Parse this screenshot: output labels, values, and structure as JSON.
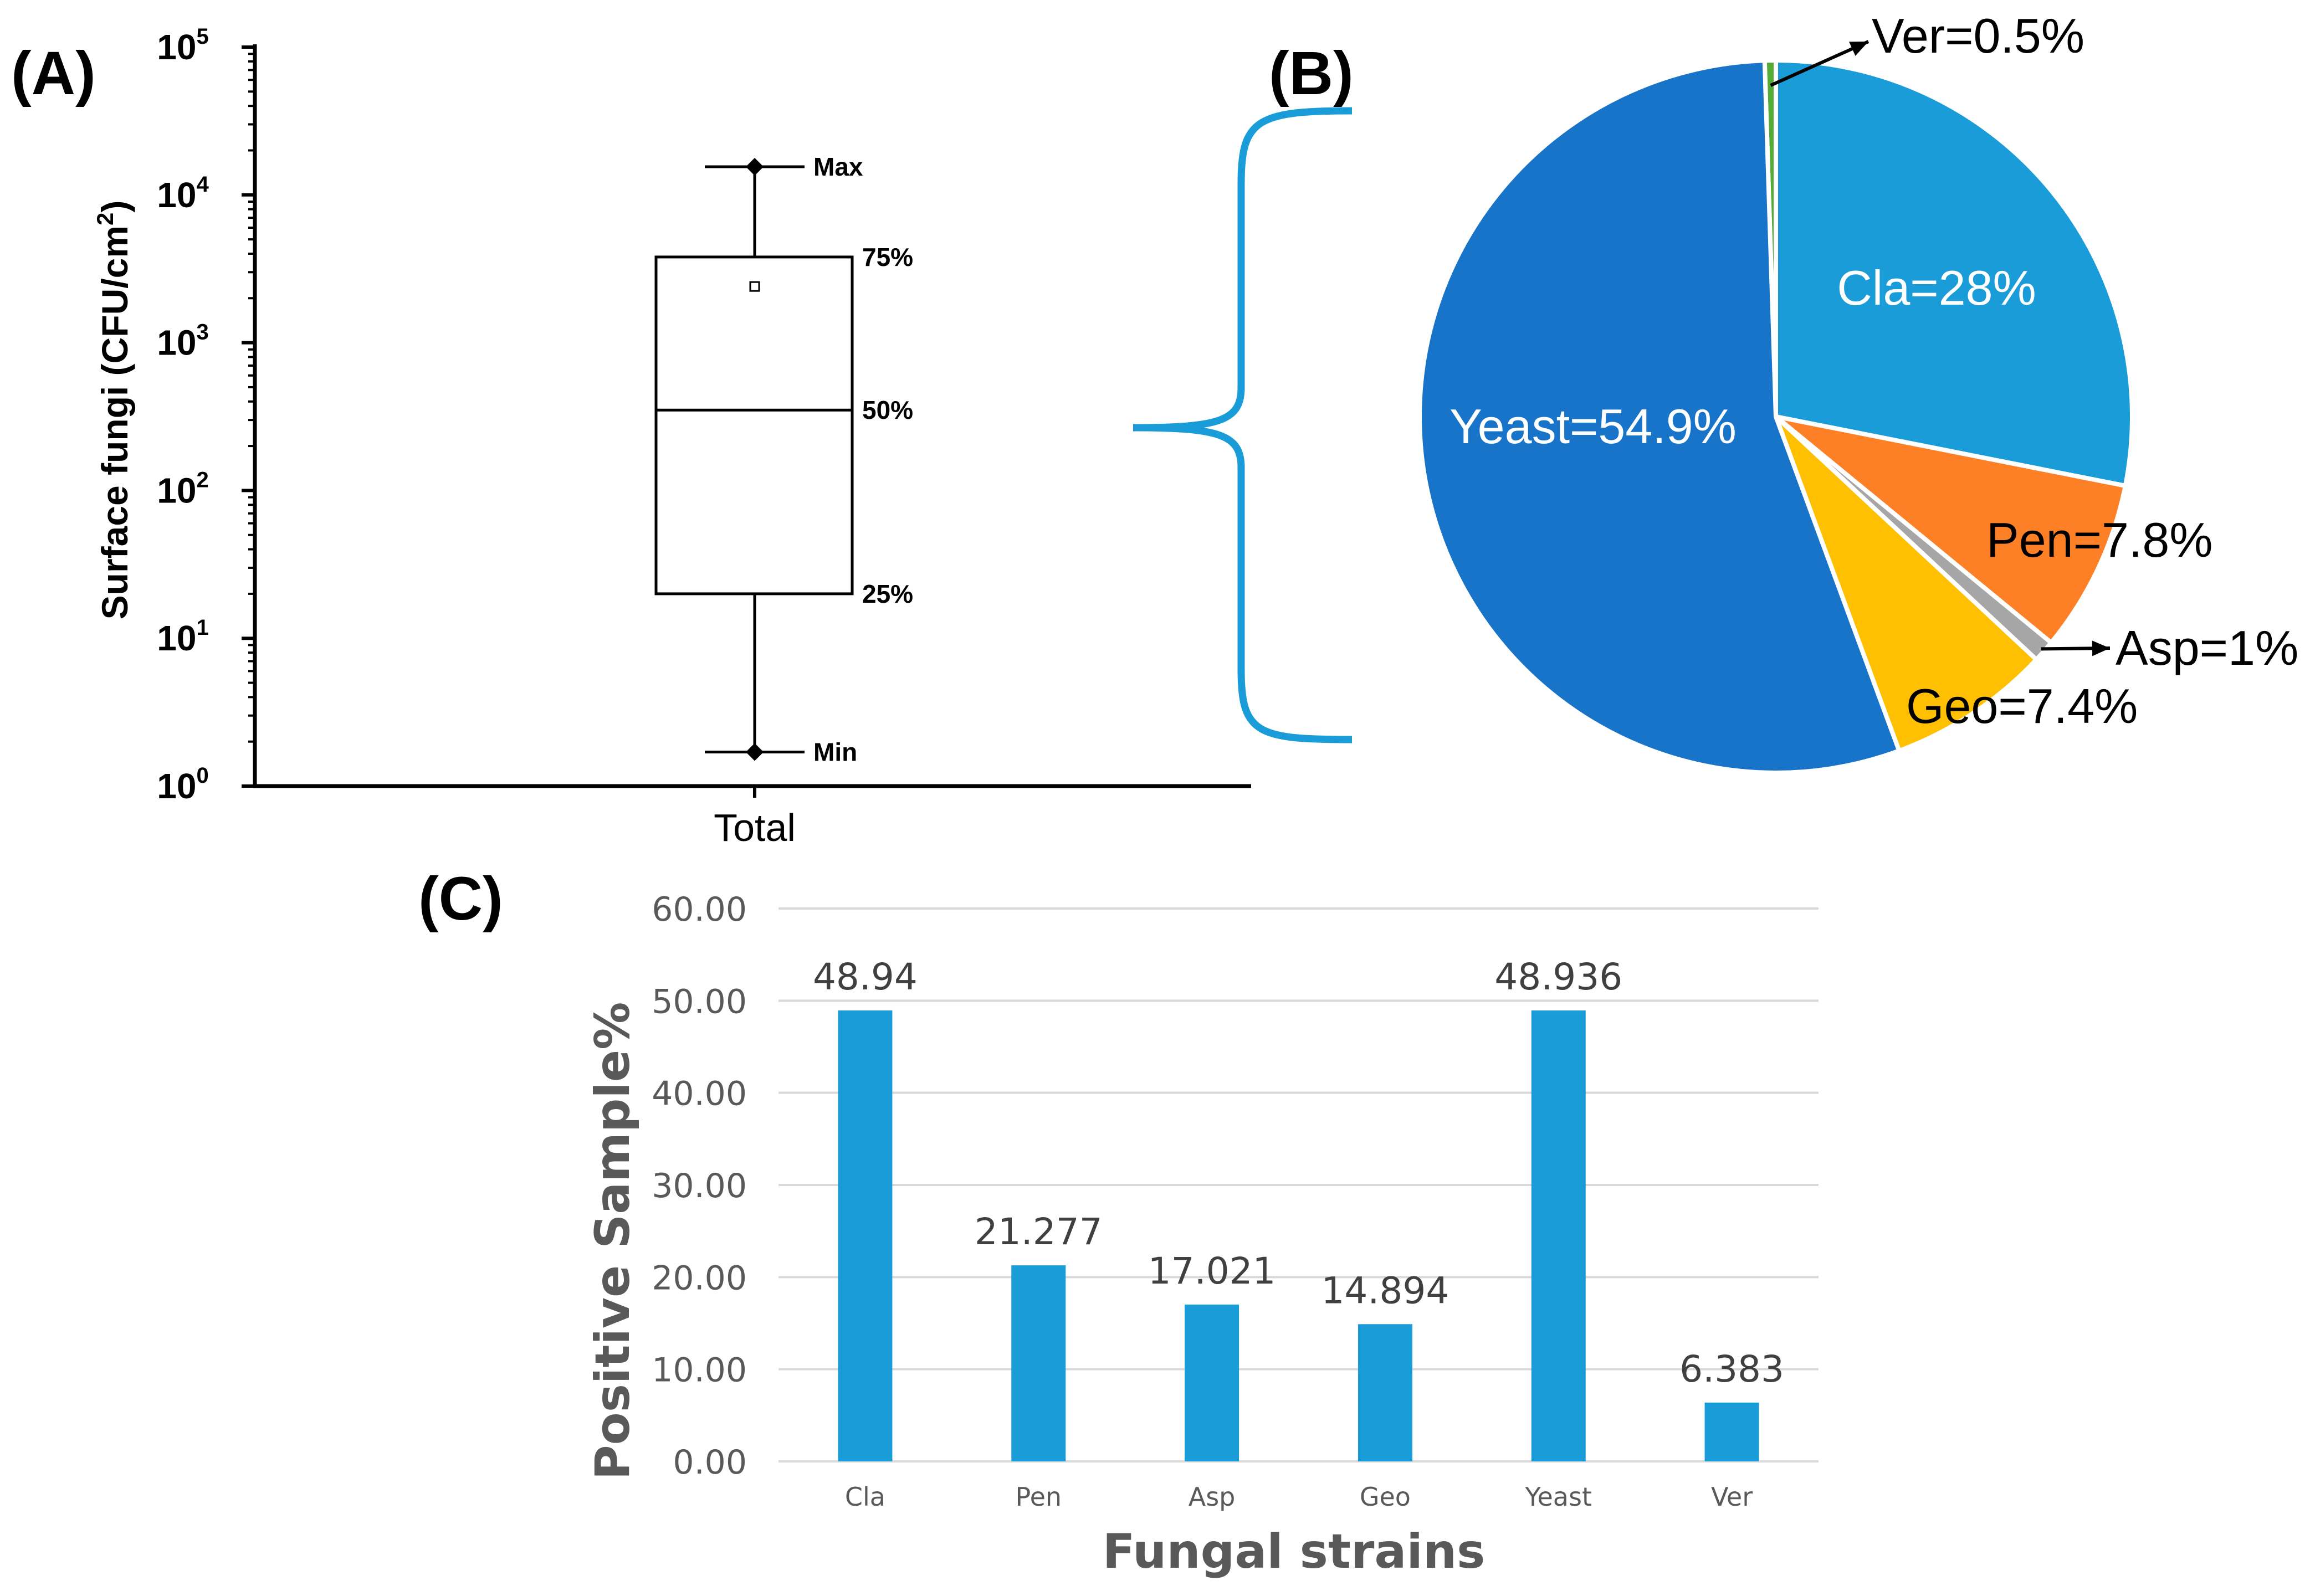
{
  "panel_labels": {
    "a": "(A)",
    "b": "(B)",
    "c": "(C)"
  },
  "colors": {
    "bar": "#1a9cd8",
    "cla": "#1a9cd8",
    "pen": "#fd7f26",
    "asp": "#a6a6a6",
    "geo": "#ffc001",
    "yeast": "#1874c9",
    "ver": "#55ac35",
    "brace": "#1a9cd8",
    "axis_c": "#595959",
    "grid": "#d9d9d9"
  },
  "chart_data": [
    {
      "type": "box",
      "panel": "(A)",
      "ylabel": "Surface fungi (CFU/cm2)",
      "ylabel_main": "Surface fungi (CFU/cm",
      "ylabel_sup": "2",
      "ylabel_close": ")",
      "yscale": "log",
      "ylim": [
        1,
        100000
      ],
      "ytick_values": [
        1,
        10,
        100,
        1000,
        10000,
        100000
      ],
      "ytick_base": "10",
      "ytick_exponents": [
        "0",
        "1",
        "2",
        "3",
        "4",
        "5"
      ],
      "category": "Total",
      "stats": {
        "min": 1.7,
        "q1": 20,
        "median": 350,
        "q3": 3800,
        "max": 15500,
        "mean": 2400
      },
      "annotations": {
        "max": "Max",
        "q3": "75%",
        "median": "50%",
        "q1": "25%",
        "min": "Min"
      }
    },
    {
      "type": "pie",
      "panel": "(B)",
      "labels": [
        "Ver=0.5%",
        "Cla=28%",
        "Pen=7.8%",
        "Asp=1%",
        "Geo=7.4%",
        "Yeast=54.9%"
      ],
      "values": [
        0.5,
        28,
        7.8,
        1,
        7.4,
        54.9
      ],
      "color_keys": [
        "ver",
        "cla",
        "pen",
        "asp",
        "geo",
        "yeast"
      ],
      "label_colors": [
        "#000000",
        "#ffffff",
        "#000000",
        "#000000",
        "#000000",
        "#ffffff"
      ]
    },
    {
      "type": "bar",
      "panel": "(C)",
      "categories": [
        "Cla",
        "Pen",
        "Asp",
        "Geo",
        "Yeast",
        "Ver"
      ],
      "values": [
        48.94,
        21.277,
        17.021,
        14.894,
        48.936,
        6.383
      ],
      "data_labels": [
        "48.94",
        "21.277",
        "17.021",
        "14.894",
        "48.936",
        "6.383"
      ],
      "ylim": [
        0,
        60
      ],
      "yticks": [
        "0.00",
        "10.00",
        "20.00",
        "30.00",
        "40.00",
        "50.00",
        "60.00"
      ],
      "xlabel": "Fungal strains",
      "ylabel": "Positive Sample%",
      "grid": true
    }
  ]
}
